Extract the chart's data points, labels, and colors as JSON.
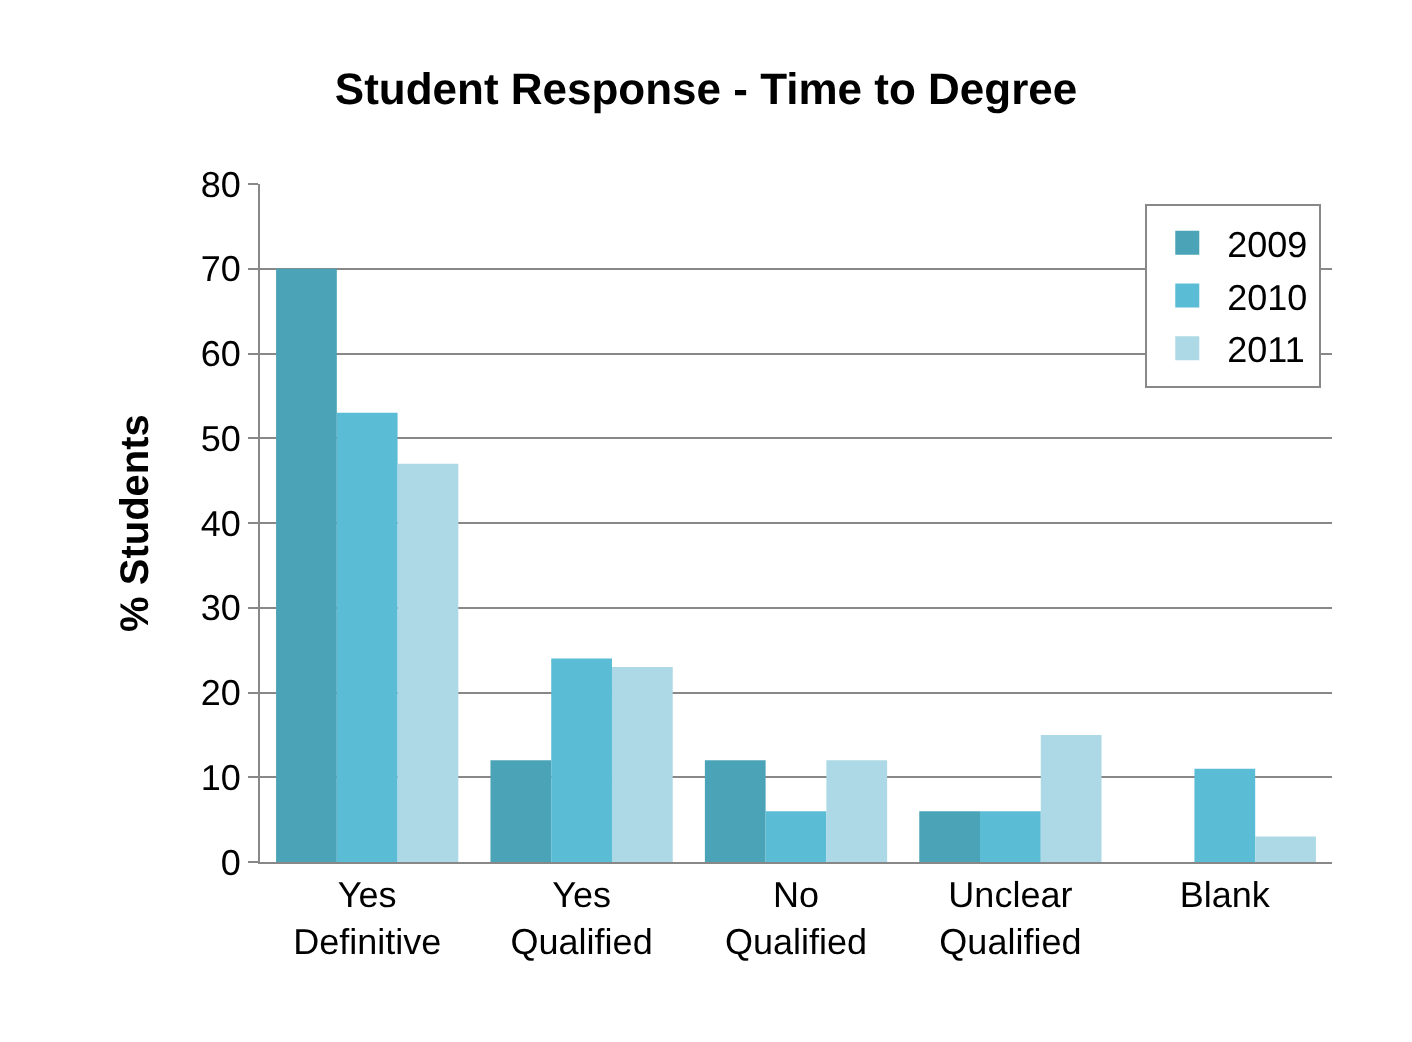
{
  "chart_data": {
    "type": "bar",
    "title": "Student Response - Time to Degree",
    "ylabel": "% Students",
    "categories": [
      "Yes\nDefinitive",
      "Yes\nQualified",
      "No\nQualified",
      "Unclear\nQualified",
      "Blank"
    ],
    "series": [
      {
        "name": "2009",
        "color": "#4aa3b6",
        "values": [
          70,
          12,
          12,
          6,
          0
        ]
      },
      {
        "name": "2010",
        "color": "#5bbcd6",
        "values": [
          53,
          24,
          6,
          6,
          11
        ]
      },
      {
        "name": "2011",
        "color": "#acd9e5",
        "values": [
          47,
          23,
          12,
          15,
          3
        ]
      }
    ],
    "ylim": [
      0,
      80
    ],
    "yticks": [
      0,
      10,
      20,
      30,
      40,
      50,
      60,
      70,
      80
    ],
    "grid": "y",
    "legend": "top right"
  }
}
